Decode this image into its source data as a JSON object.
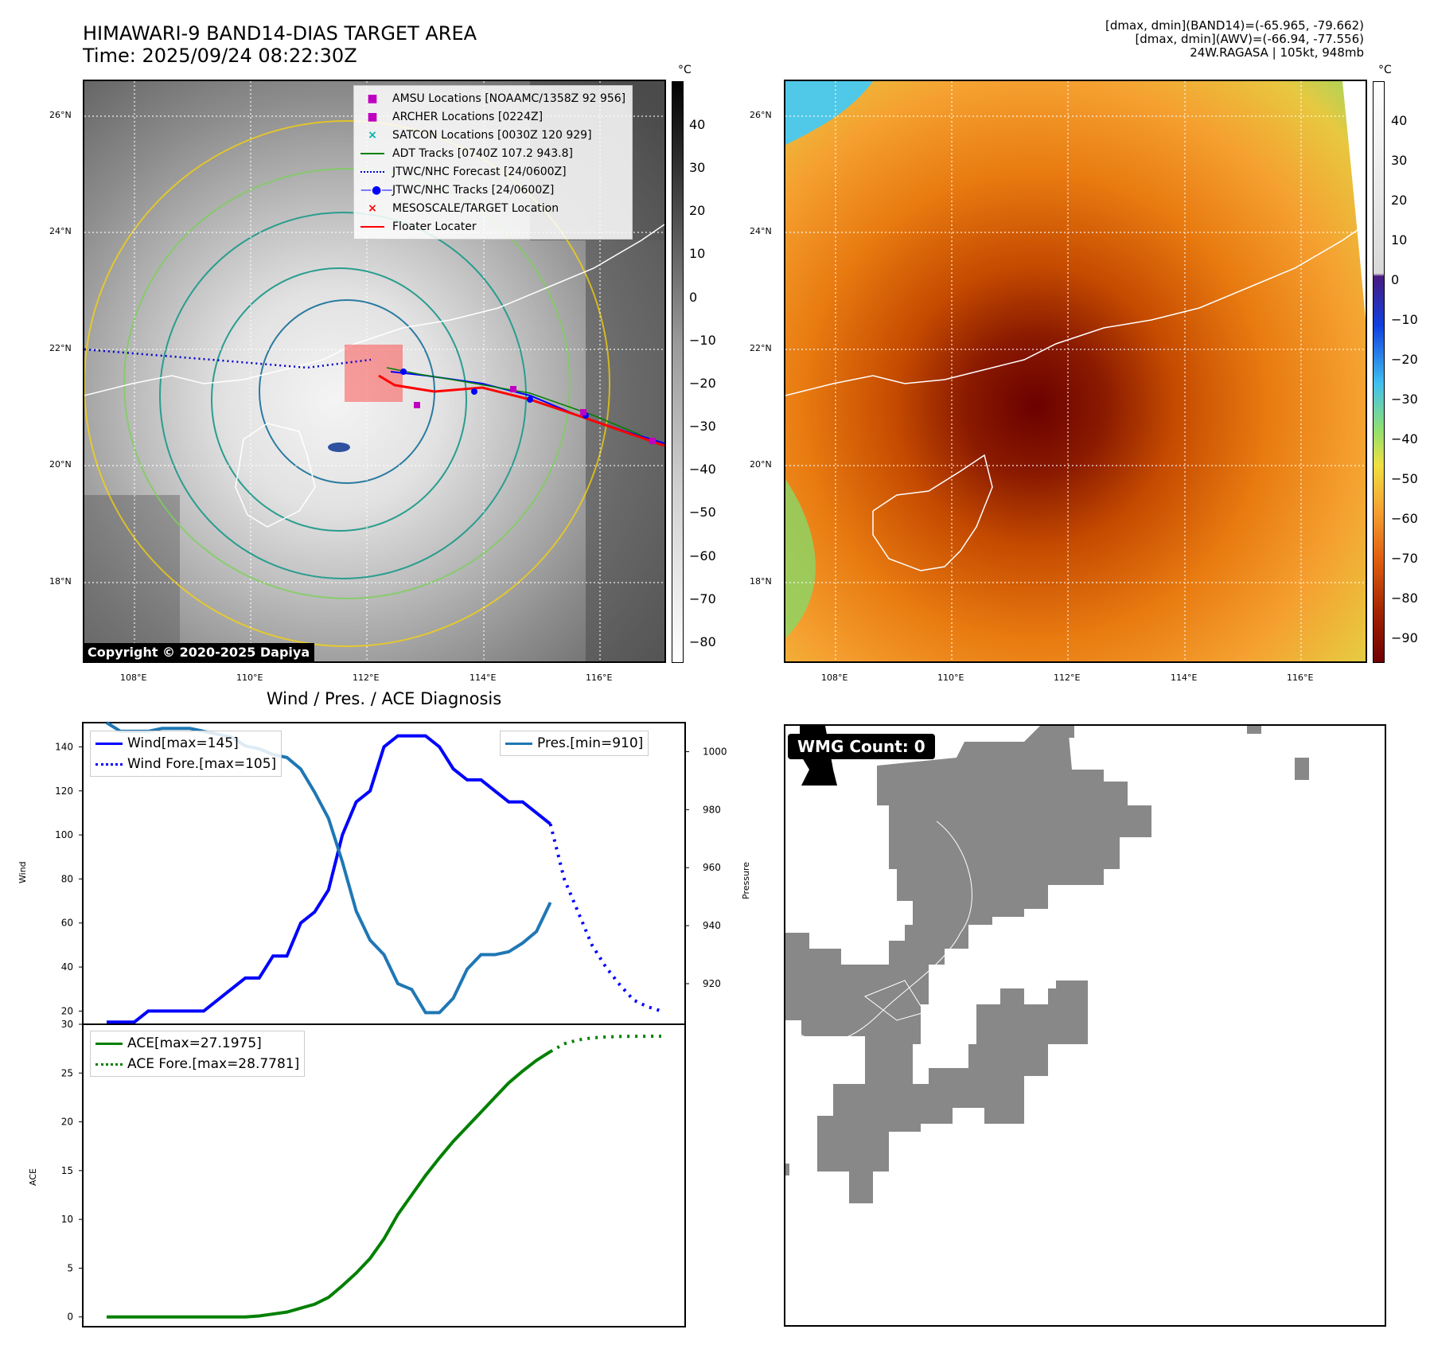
{
  "header": {
    "title_line1": "HIMAWARI-9 BAND14-DIAS TARGET AREA",
    "title_line2": "Time: 2025/09/24 08:22:30Z",
    "right_line1": "[dmax, dmin](BAND14)=(-65.965, -79.662)",
    "right_line2": "[dmax, dmin](AWV)=(-66.94, -77.556)",
    "right_line3": "24W.RAGASA | 105kt, 948mb"
  },
  "maps": {
    "lat_labels": [
      "26°N",
      "24°N",
      "22°N",
      "20°N",
      "18°N"
    ],
    "lon_labels": [
      "108°E",
      "110°E",
      "112°E",
      "114°E",
      "116°E"
    ],
    "copyright": "Copyright © 2020-2025 Dapiya",
    "cbar_unit": "°C",
    "left_cbar_ticks": [
      "40",
      "30",
      "20",
      "10",
      "0",
      "−10",
      "−20",
      "−30",
      "−40",
      "−50",
      "−60",
      "−70",
      "−80"
    ],
    "right_cbar_ticks": [
      "40",
      "30",
      "20",
      "10",
      "0",
      "−10",
      "−20",
      "−30",
      "−40",
      "−50",
      "−60",
      "−70",
      "−80",
      "−90"
    ],
    "legend": [
      {
        "label": "AMSU Locations [NOAAMC/1358Z 92 956]",
        "marker": "square",
        "color": "#c000c0"
      },
      {
        "label": "ARCHER Locations [0224Z]",
        "marker": "square",
        "color": "#c000c0"
      },
      {
        "label": "SATCON Locations [0030Z 120 929]",
        "marker": "x",
        "color": "#00b0b0"
      },
      {
        "label": "ADT Tracks [0740Z 107.2 943.8]",
        "marker": "line",
        "color": "#008000"
      },
      {
        "label": "JTWC/NHC Forecast [24/0600Z]",
        "marker": "dotted",
        "color": "#0000cc"
      },
      {
        "label": "JTWC/NHC Tracks [24/0600Z]",
        "marker": "line-dot",
        "color": "#0000ff"
      },
      {
        "label": "MESOSCALE/TARGET Location",
        "marker": "x",
        "color": "#ff0000"
      },
      {
        "label": "Floater Locater",
        "marker": "line",
        "color": "#ff0000"
      }
    ]
  },
  "diagnosis": {
    "title": "Wind / Pres. / ACE Diagnosis",
    "wind_label": "Wind",
    "pressure_label": "Pressure",
    "ace_label": "ACE",
    "legend_wind": "Wind[max=145]",
    "legend_wind_fore": "Wind Fore.[max=105]",
    "legend_pres": "Pres.[min=910]",
    "legend_ace": "ACE[max=27.1975]",
    "legend_ace_fore": "ACE Fore.[max=28.7781]"
  },
  "wmg": {
    "label": "WMG Count: 0"
  },
  "chart_data": [
    {
      "type": "line",
      "name": "wind",
      "x": [
        0,
        1,
        2,
        3,
        4,
        5,
        6,
        7,
        8,
        9,
        10,
        11,
        12,
        13,
        14,
        15,
        16,
        17,
        18,
        19,
        20,
        21,
        22,
        23,
        24,
        25,
        26,
        27,
        28,
        29,
        30,
        31,
        32,
        33
      ],
      "series": [
        {
          "name": "Wind[max=145]",
          "values": [
            15,
            15,
            15,
            20,
            20,
            20,
            20,
            20,
            25,
            30,
            35,
            35,
            45,
            45,
            60,
            65,
            75,
            100,
            115,
            120,
            140,
            145,
            145,
            145,
            140,
            130,
            125,
            125,
            120,
            115,
            115,
            110,
            105,
            null
          ]
        },
        {
          "name": "Wind Fore.[max=105]",
          "x": [
            32,
            33,
            34,
            35,
            36,
            37,
            38,
            39,
            40
          ],
          "values": [
            105,
            80,
            65,
            50,
            40,
            32,
            25,
            22,
            20
          ]
        }
      ],
      "ylim": [
        14,
        151
      ],
      "yticks": [
        20,
        40,
        60,
        80,
        100,
        120,
        140
      ]
    },
    {
      "type": "line",
      "name": "pressure",
      "series": [
        {
          "name": "Pres.[min=910]",
          "x": [
            0,
            1,
            2,
            3,
            4,
            5,
            6,
            7,
            8,
            9,
            10,
            11,
            12,
            13,
            14,
            15,
            16,
            17,
            18,
            19,
            20,
            21,
            22,
            23,
            24,
            25,
            26,
            27,
            28,
            29,
            30,
            31,
            32
          ],
          "values": [
            1010,
            1007,
            1007,
            1007,
            1008,
            1008,
            1008,
            1007,
            1006,
            1005,
            1002,
            1001,
            999,
            998,
            994,
            986,
            977,
            962,
            945,
            935,
            930,
            920,
            918,
            910,
            910,
            915,
            925,
            930,
            930,
            931,
            934,
            938,
            948
          ]
        }
      ],
      "ylim": [
        906,
        1010
      ],
      "yticks": [
        920,
        940,
        960,
        980,
        1000
      ]
    },
    {
      "type": "line",
      "name": "ace",
      "series": [
        {
          "name": "ACE[max=27.1975]",
          "x": [
            0,
            1,
            2,
            3,
            4,
            5,
            6,
            7,
            8,
            9,
            10,
            11,
            12,
            13,
            14,
            15,
            16,
            17,
            18,
            19,
            20,
            21,
            22,
            23,
            24,
            25,
            26,
            27,
            28,
            29,
            30,
            31,
            32
          ],
          "values": [
            0,
            0,
            0,
            0,
            0,
            0,
            0,
            0,
            0,
            0,
            0,
            0.1,
            0.3,
            0.5,
            0.9,
            1.3,
            2.0,
            3.2,
            4.5,
            6,
            8,
            10.5,
            12.5,
            14.5,
            16.3,
            18,
            19.5,
            21,
            22.5,
            24,
            25.2,
            26.3,
            27.1975
          ]
        },
        {
          "name": "ACE Fore.[max=28.7781]",
          "x": [
            32,
            33,
            34,
            35,
            36,
            37,
            38,
            39,
            40
          ],
          "values": [
            27.1975,
            28.0,
            28.4,
            28.6,
            28.7,
            28.75,
            28.77,
            28.77,
            28.7781
          ]
        }
      ],
      "ylim": [
        -1,
        30
      ],
      "yticks": [
        0,
        5,
        10,
        15,
        20,
        25,
        30
      ]
    }
  ]
}
